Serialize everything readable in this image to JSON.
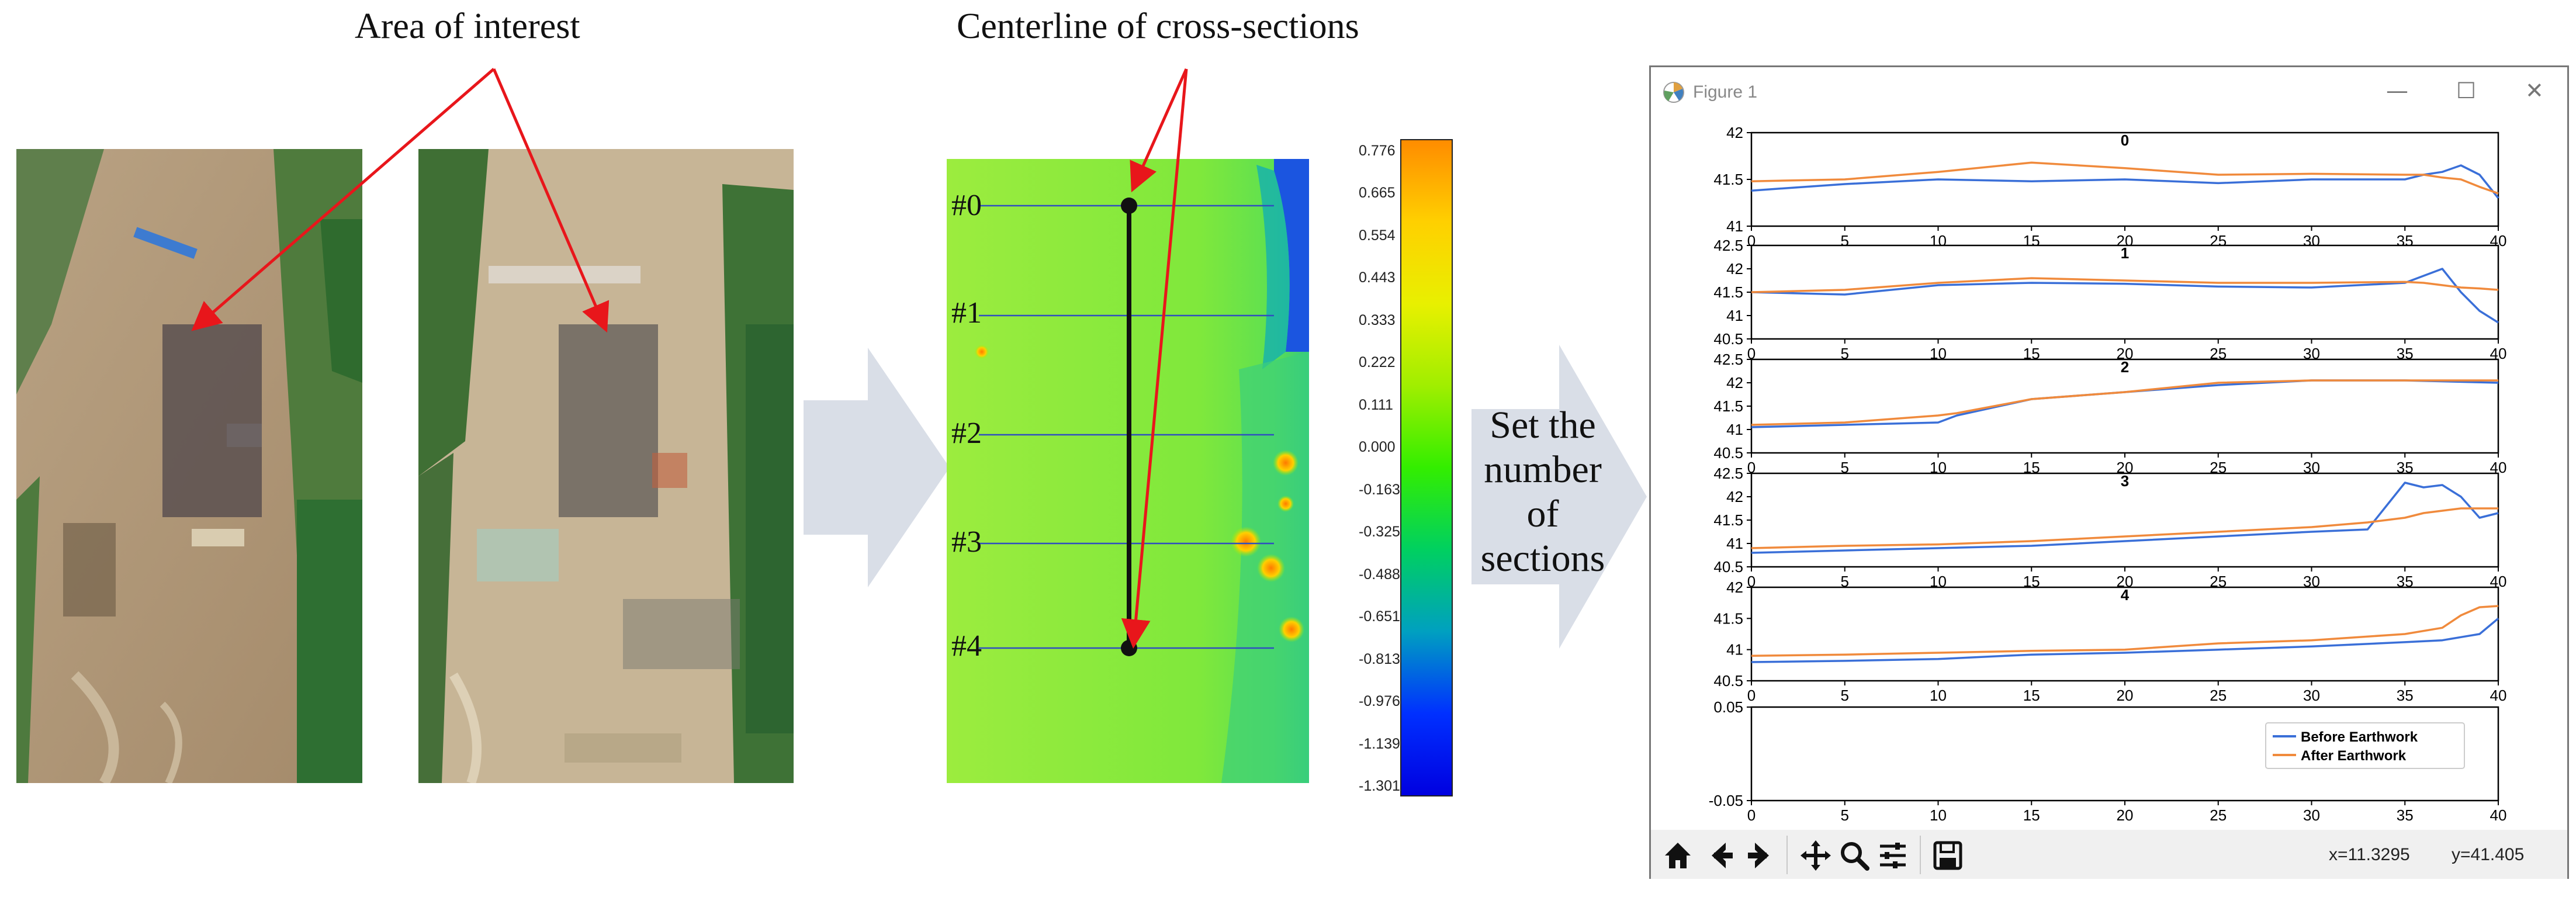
{
  "captions": {
    "area_of_interest": "Area of interest",
    "centerline": "Centerline of cross-sections",
    "set_sections": [
      "Set the",
      "number",
      "of",
      "sections"
    ]
  },
  "section_labels": [
    "#0",
    "#1",
    "#2",
    "#3",
    "#4"
  ],
  "colorbar": {
    "ticks": [
      "0.776",
      "0.665",
      "0.554",
      "0.443",
      "0.333",
      "0.222",
      "0.111",
      "0.000",
      "-0.163",
      "-0.325",
      "-0.488",
      "-0.651",
      "-0.813",
      "-0.976",
      "-1.139",
      "-1.301"
    ],
    "colors": [
      "#ff8c00",
      "#ffd000",
      "#e8f000",
      "#a0ee00",
      "#33ee00",
      "#00d060",
      "#00a0c0",
      "#0030ff",
      "#0000e0"
    ]
  },
  "figure": {
    "window_title": "Figure 1",
    "minimize_label": "—",
    "maximize_label": "☐",
    "close_label": "✕",
    "coordinate_x": "x=11.3295",
    "coordinate_y": "y=41.405",
    "legend": [
      "Before Earthwork",
      "After Earthwork"
    ],
    "series_colors": {
      "before": "#3a6fd8",
      "after": "#f08a3c"
    },
    "toolbar_icons": [
      "home-icon",
      "back-arrow-icon",
      "forward-arrow-icon",
      "pan-icon",
      "zoom-icon",
      "configure-subplots-icon",
      "save-icon"
    ]
  },
  "chart_data": [
    {
      "type": "line",
      "title": "0",
      "xlim": [
        0,
        40
      ],
      "ylim": [
        41,
        42
      ],
      "x_ticks": [
        "0",
        "5",
        "10",
        "15",
        "20",
        "25",
        "30",
        "35",
        "40"
      ],
      "y_ticks": [
        "42",
        "41.5",
        "41"
      ],
      "x": [
        0,
        5,
        10,
        15,
        20,
        25,
        30,
        35,
        36,
        37,
        38,
        39,
        40
      ],
      "series": [
        {
          "name": "Before Earthwork",
          "values": [
            41.38,
            41.45,
            41.5,
            41.48,
            41.5,
            41.46,
            41.5,
            41.5,
            41.55,
            41.58,
            41.65,
            41.55,
            41.3
          ]
        },
        {
          "name": "After Earthwork",
          "values": [
            41.48,
            41.5,
            41.58,
            41.68,
            41.62,
            41.55,
            41.56,
            41.55,
            41.55,
            41.52,
            41.5,
            41.42,
            41.35
          ]
        }
      ]
    },
    {
      "type": "line",
      "title": "1",
      "xlim": [
        0,
        40
      ],
      "ylim": [
        40.5,
        42.5
      ],
      "x_ticks": [
        "0",
        "5",
        "10",
        "15",
        "20",
        "25",
        "30",
        "35",
        "40"
      ],
      "y_ticks": [
        "42.5",
        "42",
        "41.5",
        "41",
        "40.5"
      ],
      "x": [
        0,
        5,
        10,
        15,
        20,
        25,
        30,
        35,
        36,
        37,
        38,
        39,
        40
      ],
      "series": [
        {
          "name": "Before Earthwork",
          "values": [
            41.5,
            41.45,
            41.65,
            41.7,
            41.68,
            41.62,
            41.6,
            41.7,
            41.85,
            42.0,
            41.5,
            41.1,
            40.85
          ]
        },
        {
          "name": "After Earthwork",
          "values": [
            41.5,
            41.55,
            41.7,
            41.8,
            41.75,
            41.7,
            41.7,
            41.72,
            41.7,
            41.65,
            41.6,
            41.58,
            41.55
          ]
        }
      ]
    },
    {
      "type": "line",
      "title": "2",
      "xlim": [
        0,
        40
      ],
      "ylim": [
        40.5,
        42.5
      ],
      "x_ticks": [
        "0",
        "5",
        "10",
        "15",
        "20",
        "25",
        "30",
        "35",
        "40"
      ],
      "y_ticks": [
        "42.5",
        "42",
        "41.5",
        "41",
        "40.5"
      ],
      "x": [
        0,
        5,
        10,
        11,
        15,
        20,
        25,
        30,
        35,
        40
      ],
      "series": [
        {
          "name": "Before Earthwork",
          "values": [
            41.05,
            41.1,
            41.15,
            41.3,
            41.65,
            41.8,
            41.95,
            42.05,
            42.05,
            42.0
          ]
        },
        {
          "name": "After Earthwork",
          "values": [
            41.1,
            41.15,
            41.3,
            41.35,
            41.65,
            41.8,
            42.0,
            42.05,
            42.05,
            42.05
          ]
        }
      ]
    },
    {
      "type": "line",
      "title": "3",
      "xlim": [
        0,
        40
      ],
      "ylim": [
        40.5,
        42.5
      ],
      "x_ticks": [
        "0",
        "5",
        "10",
        "15",
        "20",
        "25",
        "30",
        "35",
        "40"
      ],
      "y_ticks": [
        "42.5",
        "42",
        "41.5",
        "41",
        "40.5"
      ],
      "x": [
        0,
        5,
        10,
        15,
        20,
        25,
        30,
        33,
        34,
        35,
        36,
        37,
        38,
        39,
        40
      ],
      "series": [
        {
          "name": "Before Earthwork",
          "values": [
            40.8,
            40.85,
            40.9,
            40.95,
            41.05,
            41.15,
            41.25,
            41.3,
            41.8,
            42.3,
            42.2,
            42.25,
            42.0,
            41.55,
            41.65
          ]
        },
        {
          "name": "After Earthwork",
          "values": [
            40.9,
            40.95,
            40.98,
            41.05,
            41.15,
            41.25,
            41.35,
            41.45,
            41.5,
            41.55,
            41.65,
            41.7,
            41.75,
            41.75,
            41.75
          ]
        }
      ]
    },
    {
      "type": "line",
      "title": "4",
      "xlim": [
        0,
        40
      ],
      "ylim": [
        40.5,
        42
      ],
      "x_ticks": [
        "0",
        "5",
        "10",
        "15",
        "20",
        "25",
        "30",
        "35",
        "40"
      ],
      "y_ticks": [
        "42",
        "41.5",
        "41",
        "40.5"
      ],
      "x": [
        0,
        5,
        10,
        15,
        20,
        25,
        30,
        35,
        37,
        38,
        39,
        40
      ],
      "series": [
        {
          "name": "Before Earthwork",
          "values": [
            40.8,
            40.82,
            40.85,
            40.92,
            40.95,
            41.0,
            41.05,
            41.12,
            41.15,
            41.2,
            41.25,
            41.5
          ]
        },
        {
          "name": "After Earthwork",
          "values": [
            40.9,
            40.92,
            40.95,
            40.98,
            41.0,
            41.1,
            41.15,
            41.25,
            41.35,
            41.55,
            41.68,
            41.7
          ]
        }
      ]
    },
    {
      "type": "line",
      "title": "",
      "xlim": [
        0,
        40
      ],
      "ylim": [
        -0.05,
        0.05
      ],
      "x_ticks": [
        "0",
        "5",
        "10",
        "15",
        "20",
        "25",
        "30",
        "35",
        "40"
      ],
      "y_ticks": [
        "0.05",
        "-0.05"
      ],
      "legend": "lower-right",
      "series": []
    }
  ]
}
